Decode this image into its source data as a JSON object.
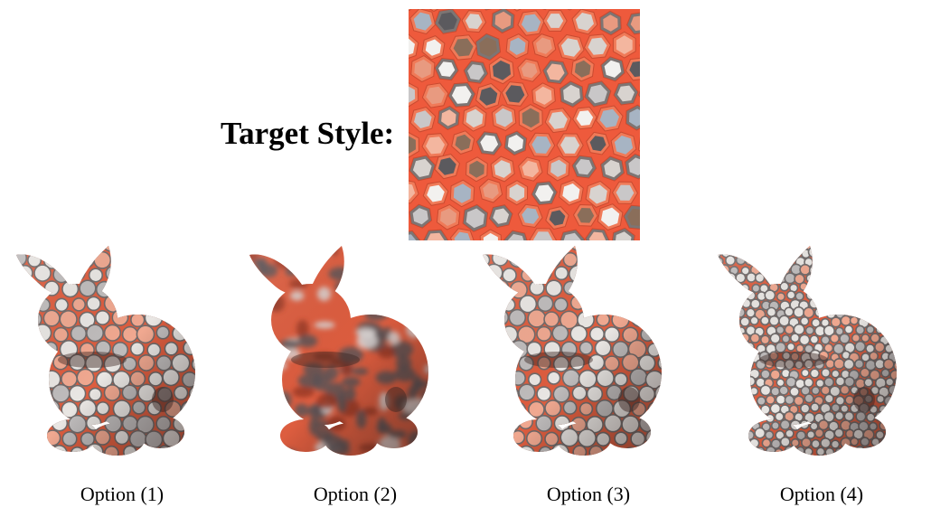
{
  "target": {
    "label": "Target Style:",
    "palette": {
      "background": "#ee5a3c",
      "rim": "#7d7573",
      "inner": [
        "#f2f1ef",
        "#d8d3cf",
        "#a7b4c3",
        "#8a6e5a",
        "#f3b69f",
        "#c9c7c8",
        "#5b5a5e",
        "#e89a80"
      ]
    }
  },
  "options": [
    {
      "caption": "Option (1)",
      "variant": "large-blobs"
    },
    {
      "caption": "Option (2)",
      "variant": "blurred-mottle"
    },
    {
      "caption": "Option (3)",
      "variant": "large-blobs"
    },
    {
      "caption": "Option (4)",
      "variant": "fine-dots"
    }
  ],
  "bunny_colors": {
    "base": "#dd5d3f",
    "shadow": "#3b2622",
    "spot": "#e9e6e3",
    "spot_rim": "#6f6a6a"
  }
}
